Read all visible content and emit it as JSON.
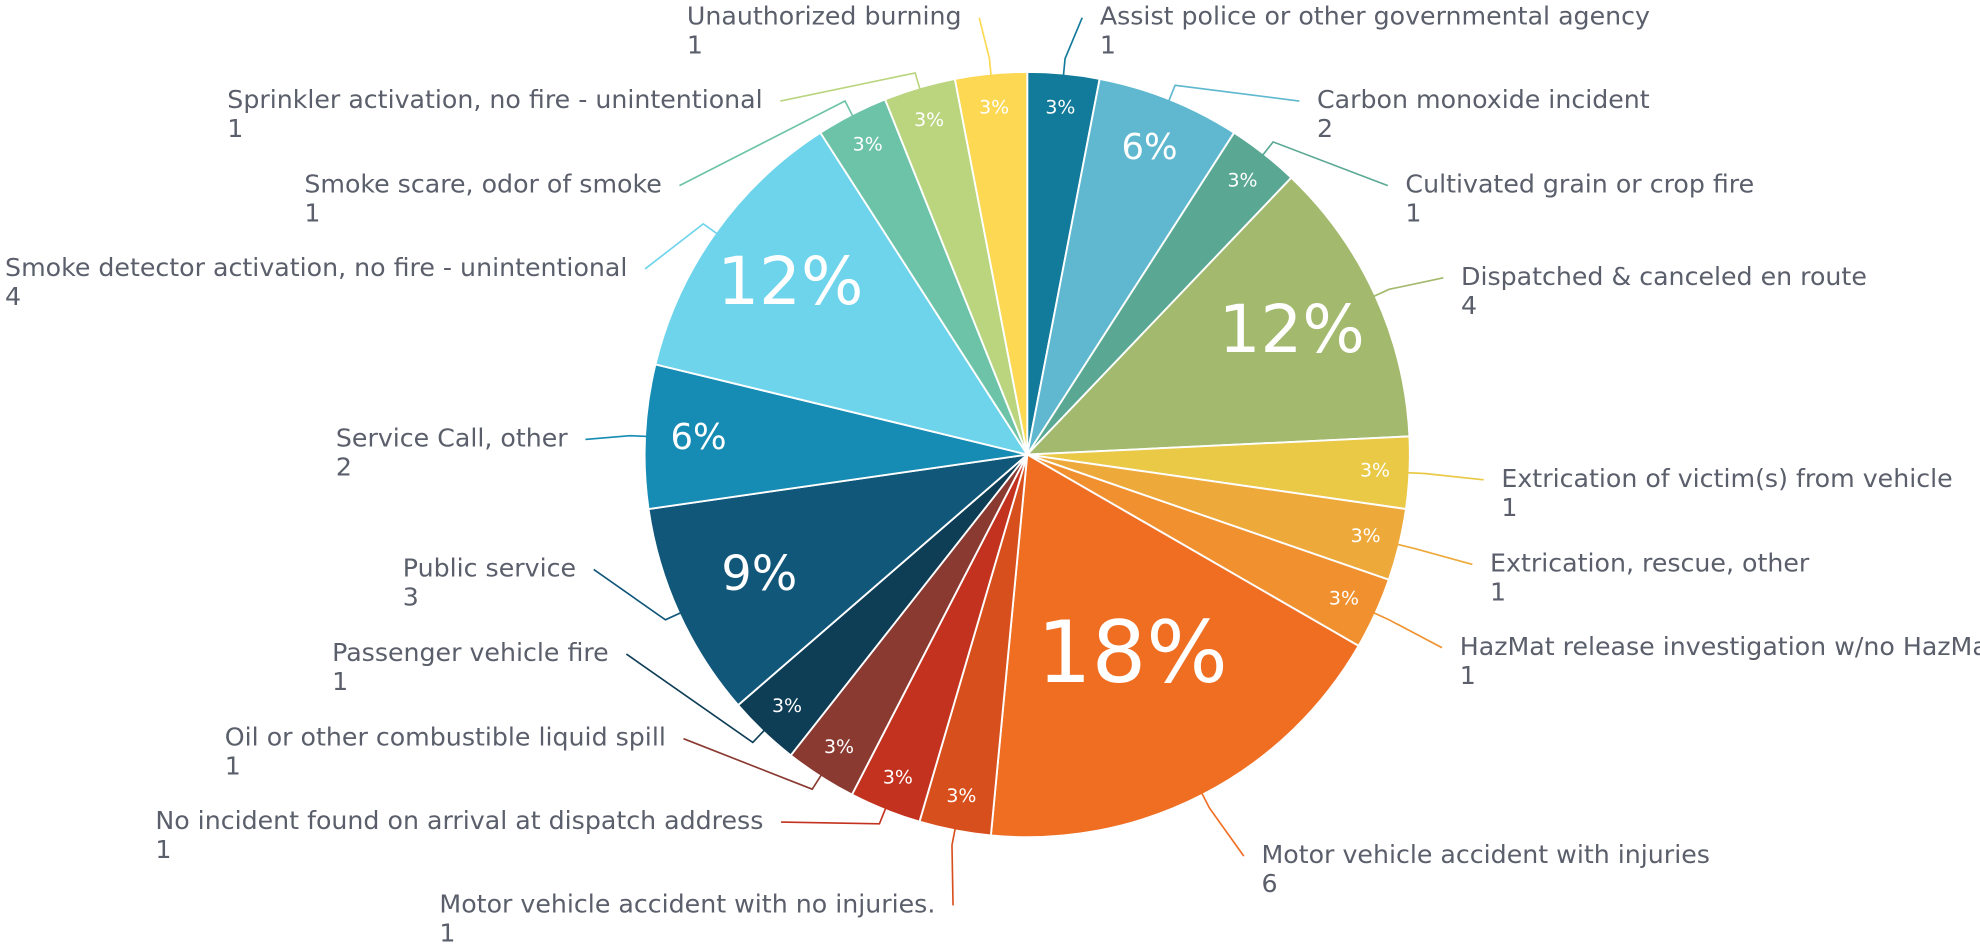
{
  "chart_data": {
    "type": "pie",
    "categories": [
      "Assist police or other governmental agency",
      "Carbon monoxide incident",
      "Cultivated grain or crop fire",
      "Dispatched & canceled en route",
      "Extrication of victim(s) from vehicle",
      "Extrication, rescue, other",
      "HazMat release investigation w/no HazMat",
      "Motor vehicle accident with injuries",
      "Motor vehicle accident with no injuries.",
      "No incident found on arrival at dispatch address",
      "Oil or other combustible liquid spill",
      "Passenger vehicle fire",
      "Public service",
      "Service Call, other",
      "Smoke detector activation, no fire - unintentional",
      "Smoke scare, odor of smoke",
      "Sprinkler activation, no fire - unintentional",
      "Unauthorized burning"
    ],
    "values": [
      1,
      2,
      1,
      4,
      1,
      1,
      1,
      6,
      1,
      1,
      1,
      1,
      3,
      2,
      4,
      1,
      1,
      1
    ],
    "percent_labels": [
      "3%",
      "6%",
      "3%",
      "12%",
      "3%",
      "3%",
      "3%",
      "18%",
      "3%",
      "3%",
      "3%",
      "3%",
      "9%",
      "6%",
      "12%",
      "3%",
      "3%",
      "3%"
    ],
    "colors": [
      "#127a9a",
      "#5fb8cf",
      "#5aa893",
      "#a3b96d",
      "#e9c946",
      "#edaa3b",
      "#f0902e",
      "#f06e22",
      "#d84f1e",
      "#c3321f",
      "#8a3a31",
      "#0e3d56",
      "#11577a",
      "#168bb3",
      "#6ed4ec",
      "#6cc3a8",
      "#bad57e",
      "#fcd853"
    ]
  }
}
